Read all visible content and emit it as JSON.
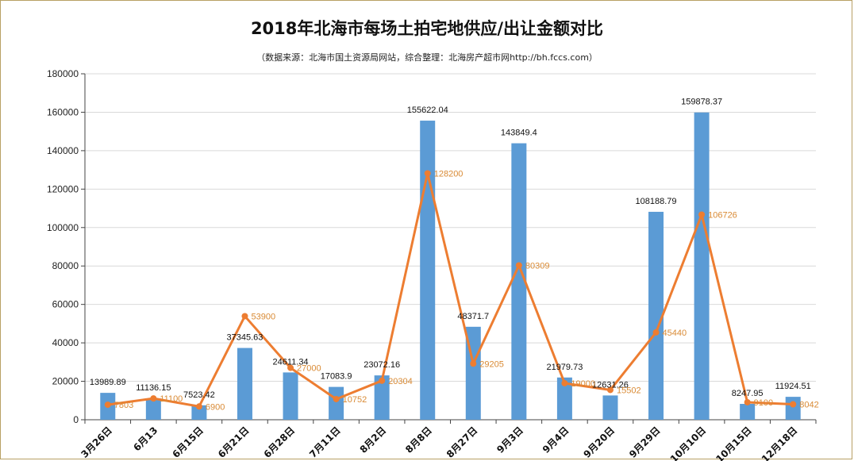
{
  "chart_data": {
    "type": "bar",
    "title": "2018年北海市每场土拍宅地供应/出让金额对比",
    "subtitle": "（数据来源：北海市国土资源局网站，综合整理：北海房产超市网http://bh.fccs.com）",
    "categories": [
      "3月26日",
      "6月13",
      "6月15日",
      "6月21日",
      "6月28日",
      "7月11日",
      "8月2日",
      "8月8日",
      "8月27日",
      "9月3日",
      "9月4日",
      "9月20日",
      "9月29日",
      "10月10日",
      "10月15日",
      "12月18日"
    ],
    "series": [
      {
        "kind": "bar",
        "color": "#5b9bd5",
        "values": [
          13989.89,
          11136.15,
          7523.42,
          37345.63,
          24611.34,
          17083.9,
          23072.16,
          155622.04,
          48371.7,
          143849.4,
          21979.73,
          12631.26,
          108188.79,
          159878.37,
          8247.95,
          11924.51
        ],
        "labels": [
          "13989.89",
          "11136.15",
          "7523.42",
          "37345.63",
          "24611.34",
          "17083.9",
          "23072.16",
          "155622.04",
          "48371.7",
          "143849.4",
          "21979.73",
          "12631.26",
          "108188.79",
          "159878.37",
          "8247.95",
          "11924.51"
        ]
      },
      {
        "kind": "line",
        "color": "#ed7d31",
        "values": [
          7803,
          11100,
          6900,
          53900,
          27000,
          10752,
          20304,
          128200,
          29205,
          80309,
          19000,
          15502,
          45440,
          106726,
          9100,
          8042
        ],
        "labels": [
          "7803",
          "11100",
          "6900",
          "53900",
          "27000",
          "10752",
          "20304",
          "128200",
          "29205",
          "80309",
          "19000",
          "15502",
          "45440",
          "106726",
          "9100",
          "8042"
        ]
      }
    ],
    "ylim": [
      0,
      180000
    ],
    "yticks": [
      0,
      20000,
      40000,
      60000,
      80000,
      100000,
      120000,
      140000,
      160000,
      180000
    ],
    "ytick_labels": [
      "0",
      "20000",
      "40000",
      "60000",
      "80000",
      "100000",
      "120000",
      "140000",
      "160000",
      "180000"
    ],
    "grid": true,
    "xlabel": "",
    "ylabel": ""
  }
}
